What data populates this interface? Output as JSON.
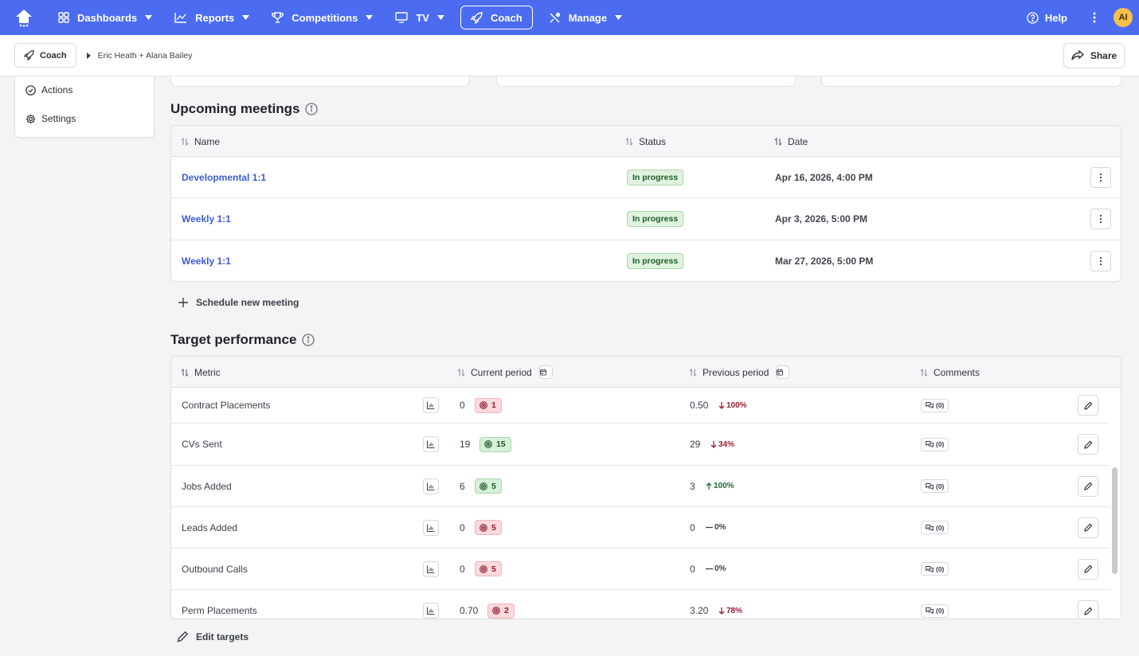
{
  "nav": {
    "items": [
      {
        "label": "Dashboards",
        "icon": "grid-icon"
      },
      {
        "label": "Reports",
        "icon": "line-chart-icon"
      },
      {
        "label": "Competitions",
        "icon": "trophy-icon"
      },
      {
        "label": "TV",
        "icon": "monitor-icon"
      },
      {
        "label": "Coach",
        "icon": "rocket-icon",
        "active": true
      },
      {
        "label": "Manage",
        "icon": "tools-icon"
      }
    ],
    "help_label": "Help",
    "avatar_initials": "AI"
  },
  "breadcrumb": {
    "root_label": "Coach",
    "current": "Eric Heath + Alana Bailey"
  },
  "share_label": "Share",
  "sidebar": {
    "items": [
      {
        "label": "Actions",
        "icon": "check-circle-icon"
      },
      {
        "label": "Settings",
        "icon": "gear-icon"
      }
    ]
  },
  "meetings": {
    "title": "Upcoming meetings",
    "columns": {
      "name": "Name",
      "status": "Status",
      "date": "Date"
    },
    "rows": [
      {
        "name": "Developmental 1:1",
        "status": "In progress",
        "date": "Apr 16, 2026, 4:00 PM"
      },
      {
        "name": "Weekly 1:1",
        "status": "In progress",
        "date": "Apr 3, 2026, 5:00 PM"
      },
      {
        "name": "Weekly 1:1",
        "status": "In progress",
        "date": "Mar 27, 2026, 5:00 PM"
      }
    ],
    "schedule_label": "Schedule new meeting"
  },
  "targets": {
    "title": "Target performance",
    "columns": {
      "metric": "Metric",
      "current": "Current period",
      "previous": "Previous period",
      "comments": "Comments"
    },
    "rows": [
      {
        "metric": "Contract Placements",
        "current": "0",
        "target": "1",
        "target_status": "red",
        "previous": "0.50",
        "change": "100%",
        "direction": "down",
        "comments": "(0)"
      },
      {
        "metric": "CVs Sent",
        "current": "19",
        "target": "15",
        "target_status": "green",
        "previous": "29",
        "change": "34%",
        "direction": "down",
        "comments": "(0)"
      },
      {
        "metric": "Jobs Added",
        "current": "6",
        "target": "5",
        "target_status": "green",
        "previous": "3",
        "change": "100%",
        "direction": "up",
        "comments": "(0)"
      },
      {
        "metric": "Leads Added",
        "current": "0",
        "target": "5",
        "target_status": "red",
        "previous": "0",
        "change": "0%",
        "direction": "flat",
        "comments": "(0)"
      },
      {
        "metric": "Outbound Calls",
        "current": "0",
        "target": "5",
        "target_status": "red",
        "previous": "0",
        "change": "0%",
        "direction": "flat",
        "comments": "(0)"
      },
      {
        "metric": "Perm Placements",
        "current": "0.70",
        "target": "2",
        "target_status": "red",
        "previous": "3.20",
        "change": "78%",
        "direction": "down",
        "comments": "(0)"
      }
    ],
    "edit_label": "Edit targets"
  },
  "colors": {
    "nav_bg": "#4b6cf0",
    "link": "#3b5bd9",
    "badge_green": "#dff3df",
    "badge_red": "#fbd9dd"
  }
}
